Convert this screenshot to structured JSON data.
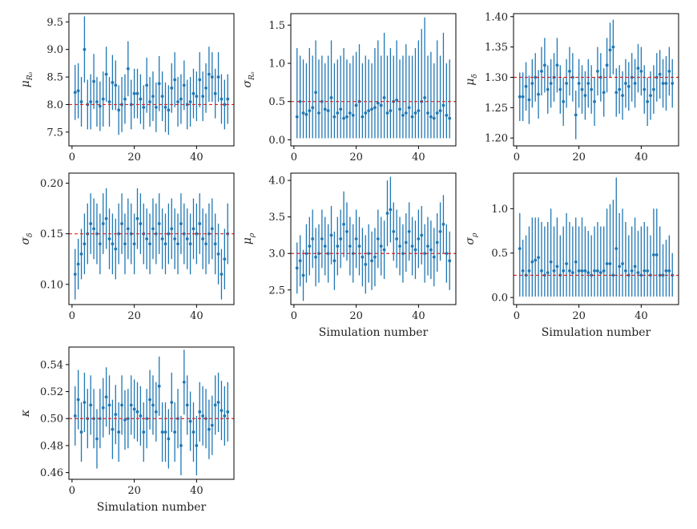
{
  "figure": {
    "x_axis_label": "Simulation number",
    "x_ticks": [
      "0",
      "20",
      "40"
    ]
  },
  "colors": {
    "marker": "#1f77b4",
    "truth_line": "#d62728",
    "axes": "#000000"
  },
  "chart_data": [
    {
      "type": "scatter",
      "name": "mu-R0",
      "ylabel": "μ_R0",
      "ylabel_main": "μ",
      "ylabel_sub": "R₀",
      "truth": 8.0,
      "xlim": [
        -1,
        52
      ],
      "ylim": [
        7.25,
        9.65
      ],
      "y_ticks": [
        7.5,
        8.0,
        8.5,
        9.0,
        9.5
      ],
      "y_tick_labels": [
        "7.5",
        "8.0",
        "8.5",
        "9.0",
        "9.5"
      ],
      "show_xlabel": false,
      "x": [
        1,
        2,
        3,
        4,
        5,
        6,
        7,
        8,
        9,
        10,
        11,
        12,
        13,
        14,
        15,
        16,
        17,
        18,
        19,
        20,
        21,
        22,
        23,
        24,
        25,
        26,
        27,
        28,
        29,
        30,
        31,
        32,
        33,
        34,
        35,
        36,
        37,
        38,
        39,
        40,
        41,
        42,
        43,
        44,
        45,
        46,
        47,
        48,
        49,
        50
      ],
      "y": [
        8.22,
        8.25,
        8.05,
        9.0,
        8.0,
        8.05,
        8.42,
        8.05,
        7.97,
        8.1,
        8.55,
        8.05,
        8.4,
        8.35,
        7.9,
        8.0,
        8.1,
        8.65,
        8.0,
        8.2,
        8.2,
        8.1,
        7.95,
        8.35,
        8.05,
        8.15,
        7.95,
        8.38,
        8.15,
        7.95,
        7.9,
        8.3,
        8.45,
        8.05,
        8.1,
        8.35,
        8.0,
        8.05,
        8.2,
        8.15,
        8.45,
        8.15,
        8.3,
        8.55,
        8.5,
        8.2,
        8.5,
        8.1,
        8.0,
        8.1
      ],
      "err": [
        0.5,
        0.5,
        0.45,
        0.6,
        0.45,
        0.5,
        0.5,
        0.45,
        0.45,
        0.5,
        0.5,
        0.45,
        0.5,
        0.45,
        0.45,
        0.5,
        0.45,
        0.5,
        0.45,
        0.45,
        0.45,
        0.45,
        0.4,
        0.5,
        0.45,
        0.45,
        0.45,
        0.5,
        0.45,
        0.45,
        0.45,
        0.45,
        0.5,
        0.45,
        0.45,
        0.45,
        0.45,
        0.45,
        0.45,
        0.45,
        0.5,
        0.45,
        0.45,
        0.5,
        0.45,
        0.45,
        0.45,
        0.45,
        0.45,
        0.45
      ]
    },
    {
      "type": "scatter",
      "name": "sigma-R0",
      "ylabel": "σ_R0",
      "ylabel_main": "σ",
      "ylabel_sub": "R₀",
      "truth": 0.5,
      "xlim": [
        -1,
        52
      ],
      "ylim": [
        -0.08,
        1.65
      ],
      "y_ticks": [
        0.0,
        0.5,
        1.0,
        1.5
      ],
      "y_tick_labels": [
        "0.0",
        "0.5",
        "1.0",
        "1.5"
      ],
      "show_xlabel": false,
      "x": [
        1,
        2,
        3,
        4,
        5,
        6,
        7,
        8,
        9,
        10,
        11,
        12,
        13,
        14,
        15,
        16,
        17,
        18,
        19,
        20,
        21,
        22,
        23,
        24,
        25,
        26,
        27,
        28,
        29,
        30,
        31,
        32,
        33,
        34,
        35,
        36,
        37,
        38,
        39,
        40,
        41,
        42,
        43,
        44,
        45,
        46,
        47,
        48,
        49,
        50
      ],
      "y": [
        0.3,
        0.5,
        0.35,
        0.33,
        0.38,
        0.42,
        0.62,
        0.35,
        0.5,
        0.4,
        0.38,
        0.55,
        0.3,
        0.35,
        0.4,
        0.28,
        0.3,
        0.35,
        0.32,
        0.45,
        0.5,
        0.3,
        0.35,
        0.38,
        0.4,
        0.42,
        0.48,
        0.45,
        0.55,
        0.35,
        0.38,
        0.5,
        0.52,
        0.4,
        0.32,
        0.35,
        0.42,
        0.3,
        0.35,
        0.38,
        0.5,
        0.55,
        0.35,
        0.3,
        0.28,
        0.35,
        0.38,
        0.45,
        0.32,
        0.28
      ],
      "lo": [
        0.02,
        0.02,
        0.02,
        0.02,
        0.02,
        0.02,
        0.02,
        0.02,
        0.02,
        0.02,
        0.02,
        0.02,
        0.02,
        0.02,
        0.02,
        0.02,
        0.02,
        0.02,
        0.02,
        0.02,
        0.02,
        0.02,
        0.02,
        0.02,
        0.02,
        0.02,
        0.02,
        0.02,
        0.02,
        0.02,
        0.02,
        0.02,
        0.02,
        0.02,
        0.02,
        0.02,
        0.02,
        0.02,
        0.02,
        0.02,
        0.02,
        0.02,
        0.02,
        0.02,
        0.02,
        0.02,
        0.02,
        0.02,
        0.02,
        0.02
      ],
      "hi": [
        1.2,
        1.1,
        1.05,
        1.0,
        1.2,
        1.1,
        1.3,
        1.05,
        1.1,
        1.0,
        1.1,
        1.3,
        1.0,
        1.05,
        1.1,
        1.2,
        1.05,
        1.0,
        1.1,
        1.15,
        1.25,
        1.0,
        1.1,
        1.05,
        1.0,
        1.2,
        1.3,
        1.1,
        1.4,
        1.1,
        1.2,
        1.1,
        1.3,
        1.05,
        1.1,
        1.25,
        1.1,
        1.1,
        1.2,
        1.3,
        1.45,
        1.6,
        1.1,
        1.15,
        1.0,
        1.3,
        1.1,
        1.4,
        1.0,
        1.05
      ]
    },
    {
      "type": "scatter",
      "name": "mu-delta",
      "ylabel": "μ_δ",
      "ylabel_main": "μ",
      "ylabel_sub": "δ",
      "truth": 1.3,
      "xlim": [
        -1,
        52
      ],
      "ylim": [
        1.187,
        1.405
      ],
      "y_ticks": [
        1.2,
        1.25,
        1.3,
        1.35,
        1.4
      ],
      "y_tick_labels": [
        "1.20",
        "1.25",
        "1.30",
        "1.35",
        "1.40"
      ],
      "show_xlabel": false,
      "x": [
        1,
        2,
        3,
        4,
        5,
        6,
        7,
        8,
        9,
        10,
        11,
        12,
        13,
        14,
        15,
        16,
        17,
        18,
        19,
        20,
        21,
        22,
        23,
        24,
        25,
        26,
        27,
        28,
        29,
        30,
        31,
        32,
        33,
        34,
        35,
        36,
        37,
        38,
        39,
        40,
        41,
        42,
        43,
        44,
        45,
        46,
        47,
        48,
        49,
        50
      ],
      "y": [
        1.268,
        1.268,
        1.285,
        1.263,
        1.29,
        1.3,
        1.272,
        1.31,
        1.32,
        1.28,
        1.29,
        1.3,
        1.32,
        1.28,
        1.26,
        1.29,
        1.31,
        1.3,
        1.238,
        1.29,
        1.28,
        1.27,
        1.29,
        1.28,
        1.26,
        1.31,
        1.3,
        1.275,
        1.32,
        1.345,
        1.35,
        1.275,
        1.28,
        1.27,
        1.29,
        1.285,
        1.3,
        1.29,
        1.315,
        1.31,
        1.28,
        1.26,
        1.27,
        1.28,
        1.3,
        1.305,
        1.29,
        1.29,
        1.31,
        1.29
      ],
      "err": [
        0.04,
        0.04,
        0.04,
        0.04,
        0.04,
        0.04,
        0.04,
        0.04,
        0.045,
        0.04,
        0.04,
        0.04,
        0.045,
        0.04,
        0.04,
        0.04,
        0.04,
        0.04,
        0.04,
        0.04,
        0.04,
        0.04,
        0.04,
        0.04,
        0.04,
        0.04,
        0.04,
        0.04,
        0.045,
        0.045,
        0.045,
        0.04,
        0.04,
        0.04,
        0.04,
        0.04,
        0.04,
        0.04,
        0.04,
        0.04,
        0.04,
        0.04,
        0.04,
        0.04,
        0.04,
        0.04,
        0.04,
        0.045,
        0.04,
        0.04
      ]
    },
    {
      "type": "scatter",
      "name": "sigma-delta",
      "ylabel": "σ_δ",
      "ylabel_main": "σ",
      "ylabel_sub": "δ",
      "truth": 0.15,
      "xlim": [
        -1,
        52
      ],
      "ylim": [
        0.08,
        0.21
      ],
      "y_ticks": [
        0.1,
        0.15,
        0.2
      ],
      "y_tick_labels": [
        "0.10",
        "0.15",
        "0.20"
      ],
      "show_xlabel": false,
      "x": [
        1,
        2,
        3,
        4,
        5,
        6,
        7,
        8,
        9,
        10,
        11,
        12,
        13,
        14,
        15,
        16,
        17,
        18,
        19,
        20,
        21,
        22,
        23,
        24,
        25,
        26,
        27,
        28,
        29,
        30,
        31,
        32,
        33,
        34,
        35,
        36,
        37,
        38,
        39,
        40,
        41,
        42,
        43,
        44,
        45,
        46,
        47,
        48,
        49,
        50
      ],
      "y": [
        0.11,
        0.12,
        0.13,
        0.14,
        0.15,
        0.16,
        0.155,
        0.15,
        0.14,
        0.16,
        0.165,
        0.145,
        0.14,
        0.135,
        0.15,
        0.16,
        0.14,
        0.155,
        0.15,
        0.14,
        0.165,
        0.16,
        0.15,
        0.145,
        0.14,
        0.155,
        0.15,
        0.16,
        0.145,
        0.14,
        0.15,
        0.155,
        0.145,
        0.14,
        0.16,
        0.15,
        0.145,
        0.14,
        0.155,
        0.15,
        0.16,
        0.145,
        0.14,
        0.15,
        0.155,
        0.14,
        0.13,
        0.11,
        0.125,
        0.15
      ],
      "err": [
        0.025,
        0.025,
        0.025,
        0.03,
        0.03,
        0.03,
        0.03,
        0.03,
        0.03,
        0.03,
        0.03,
        0.03,
        0.03,
        0.03,
        0.03,
        0.03,
        0.03,
        0.03,
        0.03,
        0.03,
        0.03,
        0.03,
        0.03,
        0.03,
        0.03,
        0.03,
        0.03,
        0.03,
        0.03,
        0.03,
        0.03,
        0.03,
        0.03,
        0.03,
        0.03,
        0.03,
        0.03,
        0.03,
        0.03,
        0.03,
        0.03,
        0.03,
        0.03,
        0.03,
        0.03,
        0.03,
        0.03,
        0.025,
        0.03,
        0.03
      ]
    },
    {
      "type": "scatter",
      "name": "mu-rho",
      "ylabel": "μ_ρ",
      "ylabel_main": "μ",
      "ylabel_sub": "ρ",
      "truth": 3.0,
      "xlim": [
        -1,
        52
      ],
      "ylim": [
        2.3,
        4.1
      ],
      "y_ticks": [
        2.5,
        3.0,
        3.5,
        4.0
      ],
      "y_tick_labels": [
        "2.5",
        "3.0",
        "3.5",
        "4.0"
      ],
      "show_xlabel": true,
      "x": [
        1,
        2,
        3,
        4,
        5,
        6,
        7,
        8,
        9,
        10,
        11,
        12,
        13,
        14,
        15,
        16,
        17,
        18,
        19,
        20,
        21,
        22,
        23,
        24,
        25,
        26,
        27,
        28,
        29,
        30,
        31,
        32,
        33,
        34,
        35,
        36,
        37,
        38,
        39,
        40,
        41,
        42,
        43,
        44,
        45,
        46,
        47,
        48,
        49,
        50
      ],
      "y": [
        2.8,
        2.9,
        2.7,
        3.0,
        3.1,
        3.2,
        2.95,
        3.0,
        3.2,
        3.1,
        3.0,
        3.25,
        2.9,
        3.1,
        3.2,
        3.4,
        3.3,
        3.1,
        3.0,
        3.2,
        3.1,
        2.95,
        2.85,
        3.0,
        2.9,
        2.95,
        3.2,
        3.1,
        3.05,
        3.55,
        3.6,
        3.3,
        3.2,
        3.1,
        3.0,
        3.15,
        3.3,
        3.1,
        3.05,
        3.2,
        3.25,
        3.0,
        3.1,
        3.05,
        2.95,
        3.15,
        3.3,
        3.4,
        3.0,
        2.9
      ],
      "err": [
        0.35,
        0.35,
        0.35,
        0.4,
        0.4,
        0.4,
        0.4,
        0.4,
        0.4,
        0.4,
        0.4,
        0.4,
        0.4,
        0.4,
        0.4,
        0.45,
        0.4,
        0.4,
        0.4,
        0.4,
        0.4,
        0.4,
        0.4,
        0.4,
        0.4,
        0.4,
        0.4,
        0.4,
        0.4,
        0.45,
        0.45,
        0.4,
        0.4,
        0.4,
        0.4,
        0.4,
        0.4,
        0.4,
        0.4,
        0.4,
        0.4,
        0.4,
        0.4,
        0.4,
        0.4,
        0.4,
        0.4,
        0.4,
        0.4,
        0.4
      ]
    },
    {
      "type": "scatter",
      "name": "sigma-rho",
      "ylabel": "σ_ρ",
      "ylabel_main": "σ",
      "ylabel_sub": "ρ",
      "truth": 0.25,
      "xlim": [
        -1,
        52
      ],
      "ylim": [
        -0.08,
        1.4
      ],
      "y_ticks": [
        0.0,
        0.5,
        1.0
      ],
      "y_tick_labels": [
        "0.0",
        "0.5",
        "1.0"
      ],
      "show_xlabel": true,
      "x": [
        1,
        2,
        3,
        4,
        5,
        6,
        7,
        8,
        9,
        10,
        11,
        12,
        13,
        14,
        15,
        16,
        17,
        18,
        19,
        20,
        21,
        22,
        23,
        24,
        25,
        26,
        27,
        28,
        29,
        30,
        31,
        32,
        33,
        34,
        35,
        36,
        37,
        38,
        39,
        40,
        41,
        42,
        43,
        44,
        45,
        46,
        47,
        48,
        49,
        50
      ],
      "y": [
        0.55,
        0.3,
        0.25,
        0.3,
        0.4,
        0.42,
        0.45,
        0.3,
        0.25,
        0.28,
        0.4,
        0.3,
        0.35,
        0.25,
        0.3,
        0.38,
        0.3,
        0.28,
        0.4,
        0.3,
        0.3,
        0.3,
        0.28,
        0.25,
        0.3,
        0.3,
        0.28,
        0.3,
        0.38,
        0.38,
        0.25,
        0.55,
        0.35,
        0.38,
        0.3,
        0.25,
        0.3,
        0.35,
        0.28,
        0.25,
        0.3,
        0.3,
        0.25,
        0.48,
        0.48,
        0.25,
        0.25,
        0.3,
        0.3,
        0.25
      ],
      "lo": [
        0.01,
        0.01,
        0.01,
        0.01,
        0.01,
        0.01,
        0.01,
        0.01,
        0.01,
        0.01,
        0.01,
        0.01,
        0.01,
        0.01,
        0.01,
        0.01,
        0.01,
        0.01,
        0.01,
        0.01,
        0.01,
        0.01,
        0.01,
        0.01,
        0.01,
        0.01,
        0.01,
        0.01,
        0.01,
        0.01,
        0.01,
        0.01,
        0.01,
        0.01,
        0.01,
        0.01,
        0.01,
        0.01,
        0.01,
        0.01,
        0.01,
        0.01,
        0.01,
        0.01,
        0.01,
        0.01,
        0.01,
        0.01,
        0.01,
        0.01
      ],
      "hi": [
        0.95,
        0.65,
        0.7,
        0.8,
        0.9,
        0.9,
        0.9,
        0.85,
        0.8,
        0.85,
        1.0,
        0.8,
        0.9,
        0.7,
        0.8,
        0.95,
        0.85,
        0.8,
        0.9,
        0.8,
        0.9,
        0.8,
        0.75,
        0.7,
        0.8,
        0.85,
        0.8,
        0.8,
        1.0,
        1.05,
        1.1,
        1.35,
        0.95,
        1.0,
        0.85,
        0.7,
        0.8,
        0.9,
        0.75,
        0.8,
        0.85,
        0.8,
        0.7,
        1.0,
        1.0,
        0.8,
        0.6,
        0.65,
        0.7,
        0.5
      ]
    },
    {
      "type": "scatter",
      "name": "kappa",
      "ylabel": "κ",
      "ylabel_main": "κ",
      "ylabel_sub": "",
      "truth": 0.5,
      "xlim": [
        -1,
        52
      ],
      "ylim": [
        0.455,
        0.553
      ],
      "y_ticks": [
        0.46,
        0.48,
        0.5,
        0.52,
        0.54
      ],
      "y_tick_labels": [
        "0.46",
        "0.48",
        "0.50",
        "0.52",
        "0.54"
      ],
      "show_xlabel": true,
      "x": [
        1,
        2,
        3,
        4,
        5,
        6,
        7,
        8,
        9,
        10,
        11,
        12,
        13,
        14,
        15,
        16,
        17,
        18,
        19,
        20,
        21,
        22,
        23,
        24,
        25,
        26,
        27,
        28,
        29,
        30,
        31,
        32,
        33,
        34,
        35,
        36,
        37,
        38,
        39,
        40,
        41,
        42,
        43,
        44,
        45,
        46,
        47,
        48,
        49,
        50
      ],
      "y": [
        0.502,
        0.514,
        0.49,
        0.512,
        0.5,
        0.51,
        0.5,
        0.485,
        0.5,
        0.508,
        0.516,
        0.51,
        0.492,
        0.503,
        0.49,
        0.51,
        0.499,
        0.5,
        0.51,
        0.507,
        0.505,
        0.502,
        0.49,
        0.5,
        0.514,
        0.51,
        0.505,
        0.524,
        0.49,
        0.49,
        0.485,
        0.512,
        0.49,
        0.5,
        0.48,
        0.527,
        0.51,
        0.498,
        0.49,
        0.48,
        0.505,
        0.502,
        0.5,
        0.492,
        0.495,
        0.51,
        0.512,
        0.506,
        0.502,
        0.505
      ],
      "err": [
        0.022,
        0.022,
        0.022,
        0.022,
        0.022,
        0.022,
        0.022,
        0.022,
        0.022,
        0.022,
        0.022,
        0.022,
        0.022,
        0.022,
        0.022,
        0.022,
        0.022,
        0.022,
        0.022,
        0.022,
        0.022,
        0.022,
        0.022,
        0.022,
        0.022,
        0.022,
        0.022,
        0.022,
        0.022,
        0.022,
        0.022,
        0.022,
        0.022,
        0.022,
        0.022,
        0.024,
        0.022,
        0.022,
        0.022,
        0.022,
        0.022,
        0.022,
        0.022,
        0.022,
        0.022,
        0.022,
        0.022,
        0.022,
        0.022,
        0.022
      ]
    }
  ]
}
